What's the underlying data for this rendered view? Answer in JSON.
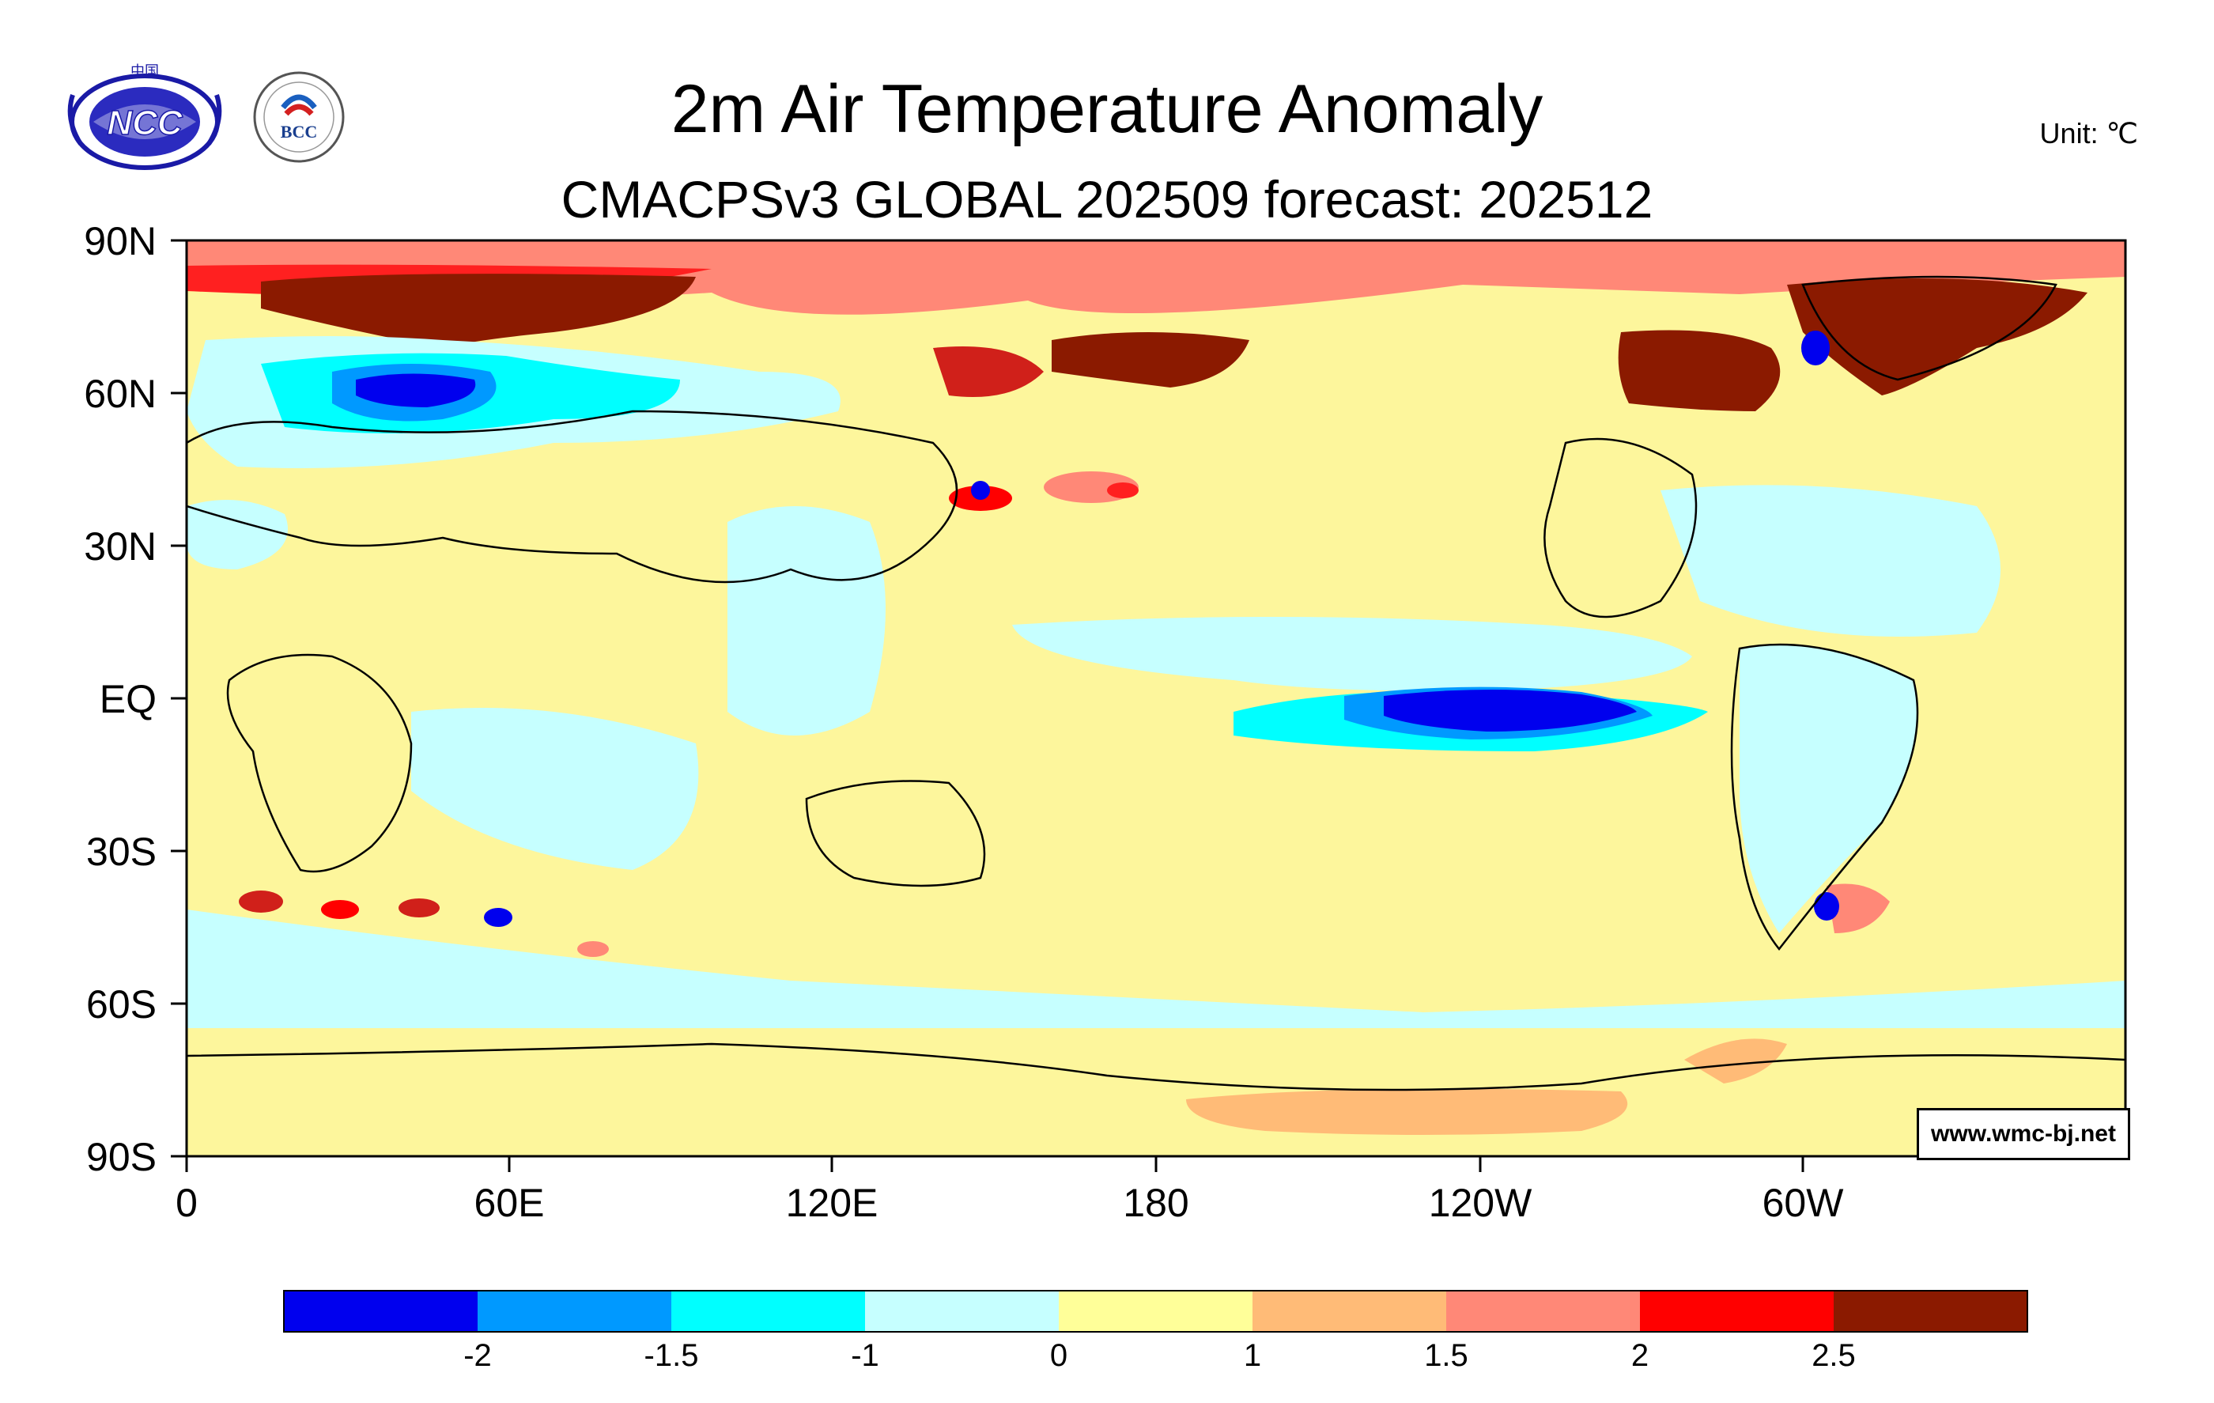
{
  "header": {
    "title": "2m Air Temperature Anomaly",
    "subtitle": "CMACPSv3 GLOBAL 202509 forecast: 202512",
    "unit": "Unit: ℃"
  },
  "logos": {
    "left_name": "NCC",
    "left_top_text": "中国",
    "right_name": "BCC"
  },
  "map": {
    "y_labels": [
      "90N",
      "60N",
      "30N",
      "EQ",
      "30S",
      "60S",
      "90S"
    ],
    "x_labels": [
      "0",
      "60E",
      "120E",
      "180",
      "120W",
      "60W"
    ],
    "credit": "www.wmc-bj.net"
  },
  "colorbar": {
    "labels": [
      "-2",
      "-1.5",
      "-1",
      "0",
      "1",
      "1.5",
      "2",
      "2.5"
    ],
    "colors": [
      "#0000ee",
      "#0099ff",
      "#00ffff",
      "#c6ffff",
      "#ffff99",
      "#ffbb77",
      "#ff8877",
      "#ff0000",
      "#8b1a00"
    ]
  },
  "colors": {
    "background_anomaly": "#fdf69c",
    "land_outline": "#000000"
  }
}
